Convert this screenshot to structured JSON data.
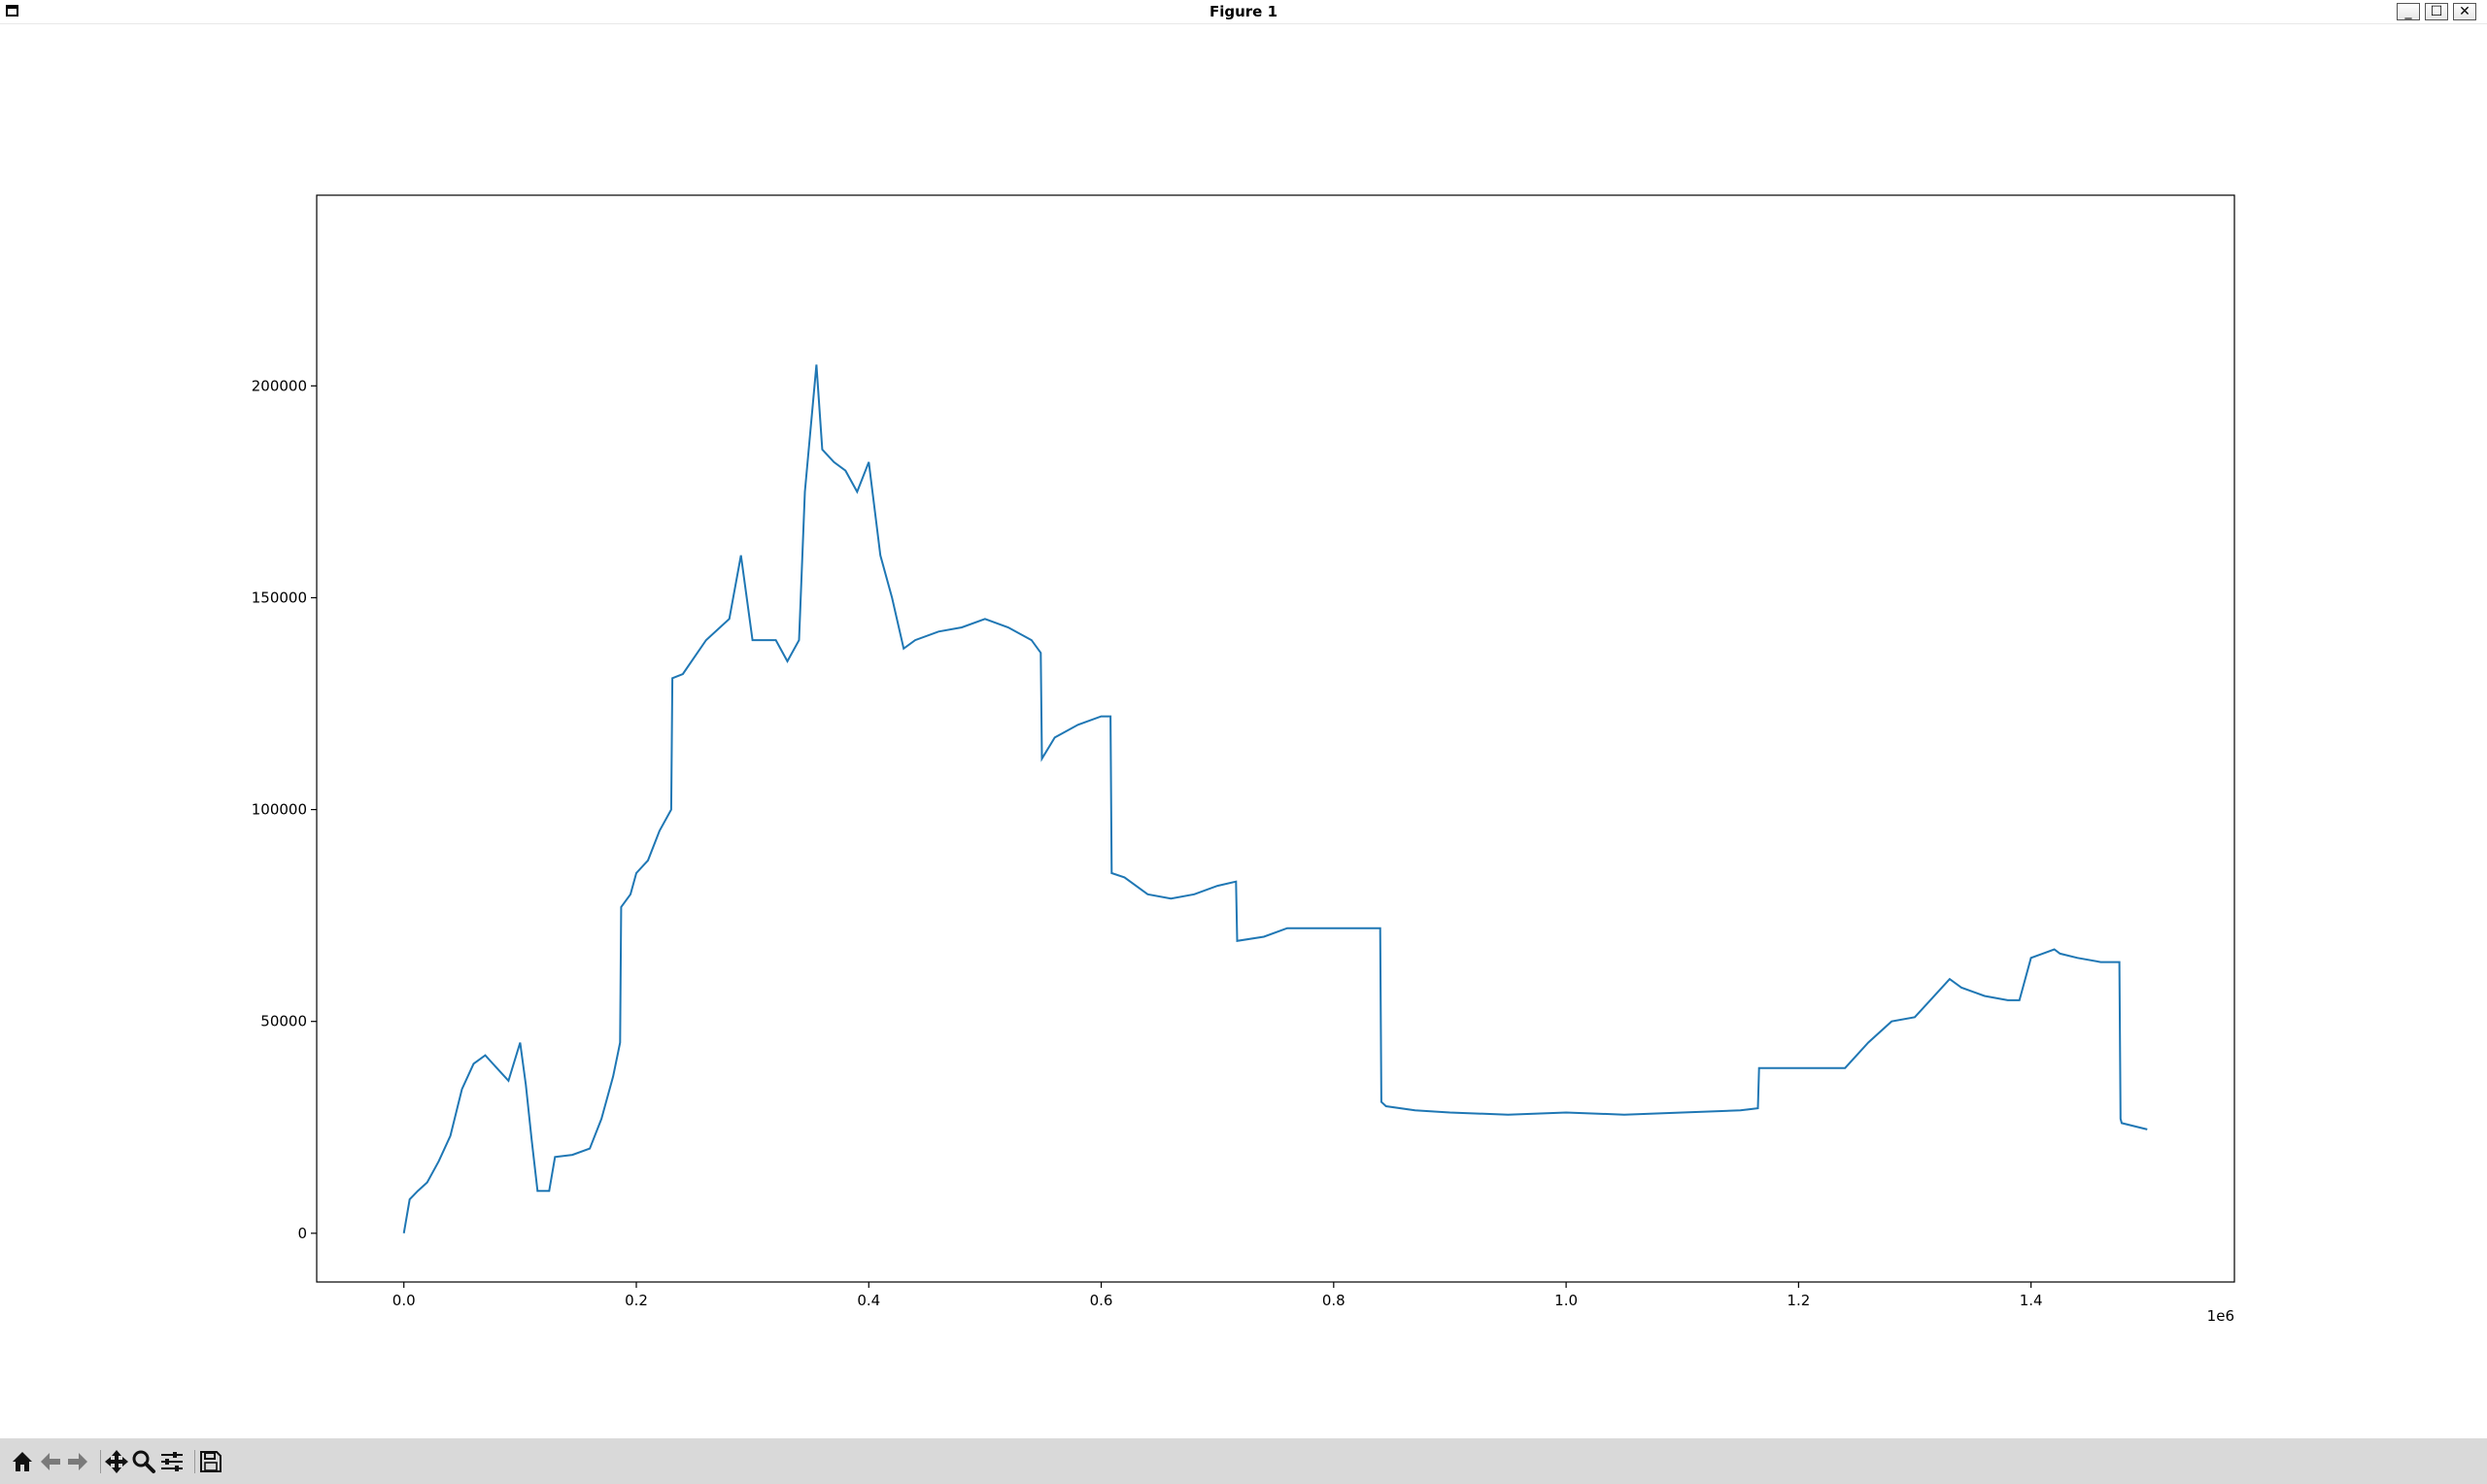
{
  "window": {
    "title": "Figure 1",
    "buttons": {
      "minimize": "_",
      "maximize": "☐",
      "close": "✕"
    }
  },
  "toolbar": {
    "items": [
      {
        "name": "home-icon",
        "tooltip": "Reset original view"
      },
      {
        "name": "back-arrow-icon",
        "tooltip": "Back"
      },
      {
        "name": "forward-arrow-icon",
        "tooltip": "Forward"
      },
      {
        "name": "pan-icon",
        "tooltip": "Pan"
      },
      {
        "name": "zoom-icon",
        "tooltip": "Zoom"
      },
      {
        "name": "subplots-config-icon",
        "tooltip": "Configure subplots"
      },
      {
        "name": "save-icon",
        "tooltip": "Save"
      }
    ]
  },
  "chart_data": {
    "type": "line",
    "title": "",
    "xlabel": "",
    "ylabel": "",
    "x_offset_label": "1e6",
    "xlim": [
      -0.075,
      1.575
    ],
    "ylim": [
      -11500,
      245000
    ],
    "xticks": [
      0.0,
      0.2,
      0.4,
      0.6,
      0.8,
      1.0,
      1.2,
      1.4
    ],
    "xtick_labels": [
      "0.0",
      "0.2",
      "0.4",
      "0.6",
      "0.8",
      "1.0",
      "1.2",
      "1.4"
    ],
    "yticks": [
      0,
      50000,
      100000,
      150000,
      200000
    ],
    "ytick_labels": [
      "0",
      "50000",
      "100000",
      "150000",
      "200000"
    ],
    "grid": false,
    "line_color": "#1f77b4",
    "series": [
      {
        "x": [
          0.0,
          0.005,
          0.012,
          0.02,
          0.03,
          0.04,
          0.05,
          0.06,
          0.07,
          0.08,
          0.09,
          0.1,
          0.105,
          0.11,
          0.115,
          0.125,
          0.13,
          0.145,
          0.16,
          0.17,
          0.18,
          0.186,
          0.187,
          0.195,
          0.2,
          0.21,
          0.22,
          0.23,
          0.231,
          0.24,
          0.26,
          0.28,
          0.29,
          0.3,
          0.32,
          0.33,
          0.34,
          0.345,
          0.355,
          0.36,
          0.37,
          0.38,
          0.39,
          0.4,
          0.41,
          0.42,
          0.43,
          0.44,
          0.46,
          0.48,
          0.5,
          0.52,
          0.54,
          0.548,
          0.549,
          0.56,
          0.58,
          0.6,
          0.608,
          0.609,
          0.62,
          0.64,
          0.66,
          0.68,
          0.7,
          0.716,
          0.717,
          0.74,
          0.76,
          0.8,
          0.84,
          0.841,
          0.845,
          0.87,
          0.9,
          0.95,
          1.0,
          1.05,
          1.1,
          1.15,
          1.165,
          1.166,
          1.2,
          1.24,
          1.26,
          1.28,
          1.3,
          1.33,
          1.34,
          1.36,
          1.38,
          1.39,
          1.4,
          1.41,
          1.42,
          1.425,
          1.44,
          1.46,
          1.476,
          1.477,
          1.478,
          1.5
        ],
        "y": [
          0,
          8000,
          10000,
          12000,
          17000,
          23000,
          34000,
          40000,
          42000,
          39000,
          36000,
          45000,
          35000,
          22000,
          10000,
          10000,
          18000,
          18500,
          20000,
          27000,
          37000,
          45000,
          77000,
          80000,
          85000,
          88000,
          95000,
          100000,
          131000,
          132000,
          140000,
          145000,
          160000,
          140000,
          140000,
          135000,
          140000,
          175000,
          205000,
          185000,
          182000,
          180000,
          175000,
          182000,
          160000,
          150000,
          138000,
          140000,
          142000,
          143000,
          145000,
          143000,
          140000,
          137000,
          112000,
          117000,
          120000,
          122000,
          122000,
          85000,
          84000,
          80000,
          79000,
          80000,
          82000,
          83000,
          69000,
          70000,
          72000,
          72000,
          72000,
          31000,
          30000,
          29000,
          28500,
          28000,
          28500,
          28000,
          28500,
          29000,
          29500,
          39000,
          39000,
          39000,
          45000,
          50000,
          51000,
          60000,
          58000,
          56000,
          55000,
          55000,
          65000,
          66000,
          67000,
          66000,
          65000,
          64000,
          64000,
          27000,
          26000,
          24500
        ]
      }
    ]
  }
}
